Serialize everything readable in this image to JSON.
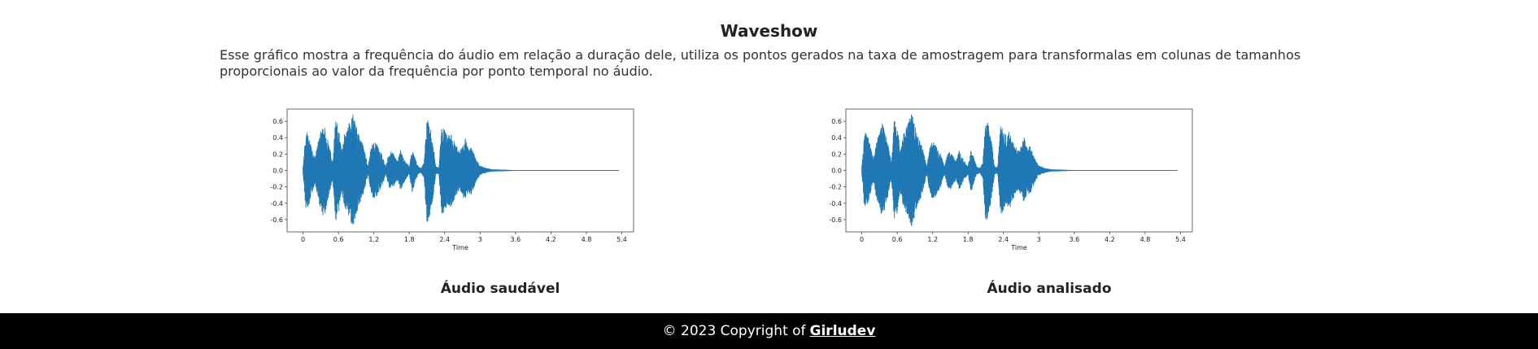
{
  "header": {
    "title": "Waveshow",
    "description": "Esse gráfico mostra a frequência do áudio em relação a duração dele, utiliza os pontos gerados na taxa de amostragem para transformalas em colunas de tamanhos proporcionais ao valor da frequência por ponto temporal no áudio."
  },
  "charts": {
    "left_caption": "Áudio saudável",
    "right_caption": "Áudio analisado"
  },
  "footer": {
    "copyright": "© 2023 Copyright of",
    "author": "Girludev"
  },
  "chart_data": [
    {
      "type": "area",
      "name_caption": "Áudio saudável",
      "xlabel": "Time",
      "ylabel": "",
      "xlim": [
        -0.27,
        5.6
      ],
      "ylim": [
        -0.75,
        0.75
      ],
      "xticks": [
        0,
        0.6,
        1.2,
        1.8,
        2.4,
        3,
        3.6,
        4.2,
        4.8,
        5.4
      ],
      "yticks": [
        -0.6,
        -0.4,
        -0.2,
        0.0,
        0.2,
        0.4,
        0.6
      ],
      "color": "#1f77b4",
      "envelope": {
        "t": [
          0,
          0.05,
          0.1,
          0.15,
          0.2,
          0.25,
          0.3,
          0.35,
          0.4,
          0.45,
          0.5,
          0.55,
          0.6,
          0.65,
          0.7,
          0.75,
          0.8,
          0.85,
          0.9,
          0.95,
          1.0,
          1.05,
          1.1,
          1.15,
          1.2,
          1.25,
          1.3,
          1.35,
          1.4,
          1.45,
          1.5,
          1.55,
          1.6,
          1.65,
          1.7,
          1.75,
          1.8,
          1.85,
          1.9,
          1.95,
          2.0,
          2.05,
          2.1,
          2.15,
          2.2,
          2.25,
          2.3,
          2.35,
          2.4,
          2.45,
          2.5,
          2.55,
          2.6,
          2.65,
          2.7,
          2.75,
          2.8,
          2.85,
          2.9,
          2.95,
          3.0,
          3.1,
          3.2,
          3.4,
          3.6,
          4.0,
          4.5,
          5.0,
          5.35
        ],
        "amp": [
          0.05,
          0.5,
          0.42,
          0.3,
          0.15,
          0.35,
          0.48,
          0.58,
          0.45,
          0.3,
          0.1,
          0.62,
          0.55,
          0.25,
          0.45,
          0.52,
          0.62,
          0.7,
          0.55,
          0.42,
          0.35,
          0.22,
          0.05,
          0.28,
          0.36,
          0.32,
          0.25,
          0.18,
          0.05,
          0.2,
          0.24,
          0.18,
          0.12,
          0.25,
          0.16,
          0.1,
          0.05,
          0.28,
          0.15,
          0.05,
          0.03,
          0.1,
          0.65,
          0.55,
          0.35,
          0.05,
          0.04,
          0.55,
          0.5,
          0.42,
          0.48,
          0.38,
          0.3,
          0.25,
          0.3,
          0.4,
          0.28,
          0.3,
          0.2,
          0.12,
          0.06,
          0.03,
          0.015,
          0.01,
          0.005,
          0.004,
          0.003,
          0.002,
          0.002
        ]
      }
    },
    {
      "type": "area",
      "name_caption": "Áudio analisado",
      "xlabel": "Time",
      "ylabel": "",
      "xlim": [
        -0.27,
        5.6
      ],
      "ylim": [
        -0.75,
        0.75
      ],
      "xticks": [
        0,
        0.6,
        1.2,
        1.8,
        2.4,
        3,
        3.6,
        4.2,
        4.8,
        5.4
      ],
      "yticks": [
        -0.6,
        -0.4,
        -0.2,
        0.0,
        0.2,
        0.4,
        0.6
      ],
      "color": "#1f77b4",
      "envelope": {
        "t": [
          0,
          0.05,
          0.1,
          0.15,
          0.2,
          0.25,
          0.3,
          0.35,
          0.4,
          0.45,
          0.5,
          0.55,
          0.6,
          0.65,
          0.7,
          0.75,
          0.8,
          0.85,
          0.9,
          0.95,
          1.0,
          1.05,
          1.1,
          1.15,
          1.2,
          1.25,
          1.3,
          1.35,
          1.4,
          1.45,
          1.5,
          1.55,
          1.6,
          1.65,
          1.7,
          1.75,
          1.8,
          1.85,
          1.9,
          1.95,
          2.0,
          2.05,
          2.1,
          2.15,
          2.2,
          2.25,
          2.3,
          2.35,
          2.4,
          2.45,
          2.5,
          2.55,
          2.6,
          2.65,
          2.7,
          2.75,
          2.8,
          2.85,
          2.9,
          2.95,
          3.0,
          3.1,
          3.2,
          3.4,
          3.6,
          4.0,
          4.5,
          5.0,
          5.35
        ],
        "amp": [
          0.05,
          0.5,
          0.42,
          0.3,
          0.15,
          0.35,
          0.48,
          0.58,
          0.45,
          0.3,
          0.1,
          0.62,
          0.55,
          0.25,
          0.45,
          0.52,
          0.62,
          0.7,
          0.55,
          0.42,
          0.35,
          0.22,
          0.05,
          0.28,
          0.36,
          0.32,
          0.25,
          0.18,
          0.05,
          0.2,
          0.24,
          0.18,
          0.12,
          0.25,
          0.16,
          0.1,
          0.05,
          0.28,
          0.15,
          0.05,
          0.03,
          0.1,
          0.65,
          0.55,
          0.35,
          0.05,
          0.04,
          0.55,
          0.5,
          0.42,
          0.48,
          0.38,
          0.3,
          0.25,
          0.3,
          0.4,
          0.28,
          0.3,
          0.2,
          0.12,
          0.06,
          0.03,
          0.015,
          0.01,
          0.005,
          0.004,
          0.003,
          0.002,
          0.002
        ]
      }
    }
  ]
}
